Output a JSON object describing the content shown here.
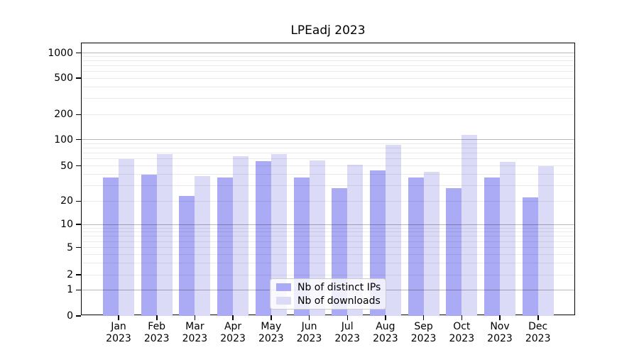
{
  "chart_data": {
    "type": "bar",
    "title": "LPEadj 2023",
    "categories": [
      "Jan 2023",
      "Feb 2023",
      "Mar 2023",
      "Apr 2023",
      "May 2023",
      "Jun 2023",
      "Jul 2023",
      "Aug 2023",
      "Sep 2023",
      "Oct 2023",
      "Nov 2023",
      "Dec 2023"
    ],
    "series": [
      {
        "name": "Nb of distinct IPs",
        "color": "#aaaaf5",
        "values": [
          37,
          40,
          23,
          37,
          57,
          37,
          28,
          44,
          37,
          28,
          37,
          22
        ]
      },
      {
        "name": "Nb of downloads",
        "color": "#dbdbf8",
        "values": [
          60,
          68,
          38,
          64,
          68,
          58,
          51,
          88,
          43,
          115,
          55,
          50
        ]
      }
    ],
    "xlabel": "",
    "ylabel": "",
    "yscale": "symlog",
    "yticks": [
      0,
      1,
      2,
      5,
      10,
      20,
      50,
      100,
      200,
      500,
      1000
    ],
    "ylim": [
      0,
      1300
    ],
    "grid": "horizontal; dark lines at decades (1,10,100,1000), faint minor lines at 2-9 multiples",
    "legend_position": "lower center"
  }
}
